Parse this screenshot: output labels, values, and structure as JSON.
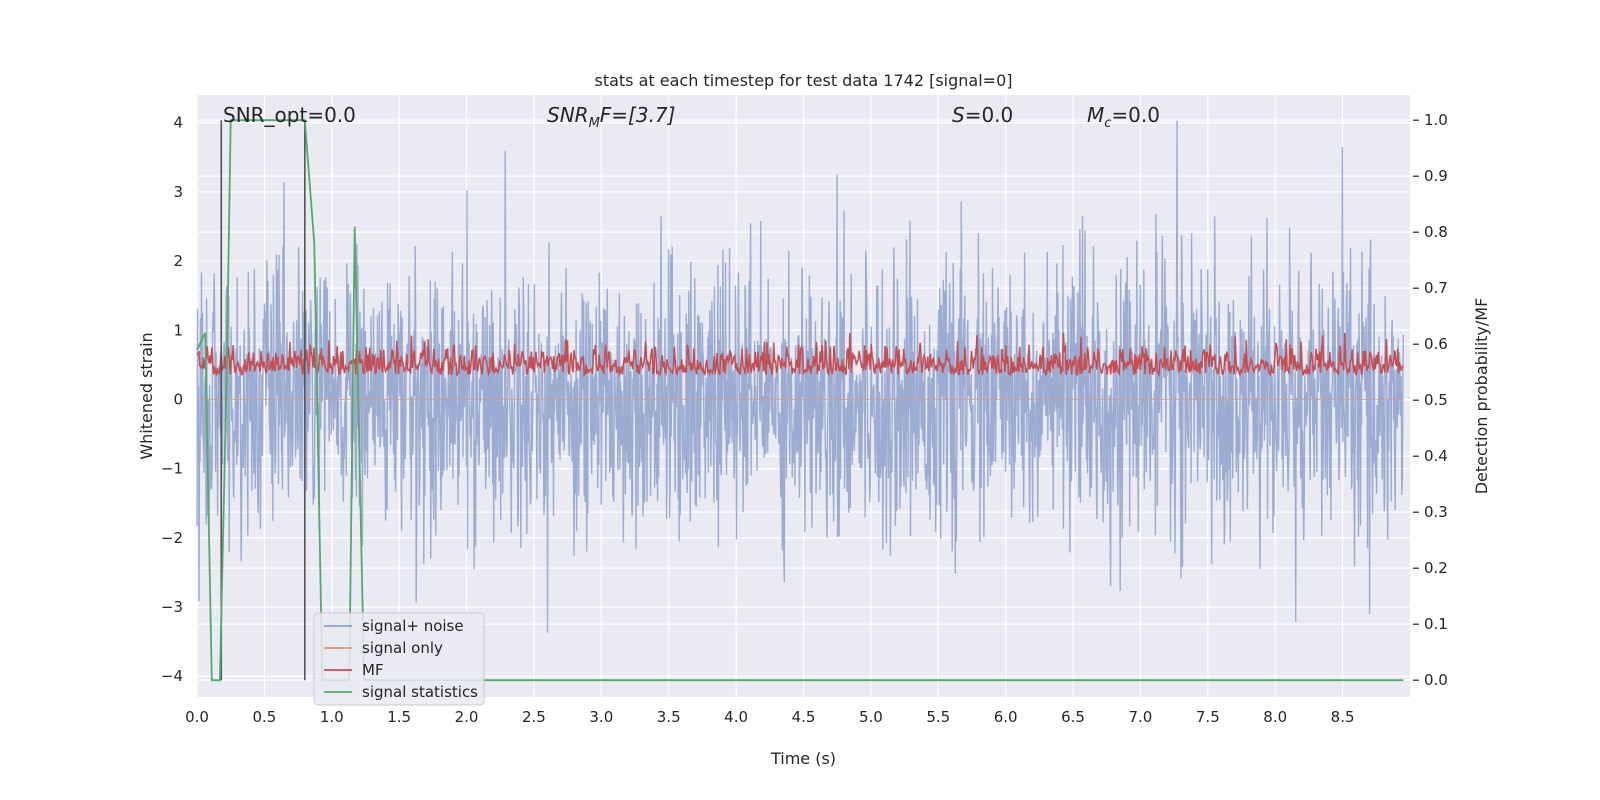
{
  "chart_data": {
    "type": "line",
    "title": "stats at each timestep for test data 1742 [signal=0]",
    "xlabel": "Time (s)",
    "ylabel_left": "Whitened strain",
    "ylabel_right": "Detection probability/MF",
    "xlim": [
      0.0,
      9.0
    ],
    "ylim_left": [
      -4.3,
      4.4
    ],
    "ylim_right": [
      -0.03,
      1.045
    ],
    "x_ticks": [
      0.0,
      0.5,
      1.0,
      1.5,
      2.0,
      2.5,
      3.0,
      3.5,
      4.0,
      4.5,
      5.0,
      5.5,
      6.0,
      6.5,
      7.0,
      7.5,
      8.0,
      8.5
    ],
    "x_tick_labels": [
      "0.0",
      "0.5",
      "1.0",
      "1.5",
      "2.0",
      "2.5",
      "3.0",
      "3.5",
      "4.0",
      "4.5",
      "5.0",
      "5.5",
      "6.0",
      "6.5",
      "7.0",
      "7.5",
      "8.0",
      "8.5"
    ],
    "y_left_ticks": [
      -4,
      -3,
      -2,
      -1,
      0,
      1,
      2,
      3,
      4
    ],
    "y_left_tick_labels": [
      "−4",
      "−3",
      "−2",
      "−1",
      "0",
      "1",
      "2",
      "3",
      "4"
    ],
    "y_right_ticks": [
      0.0,
      0.1,
      0.2,
      0.3,
      0.4,
      0.5,
      0.6,
      0.7,
      0.8,
      0.9,
      1.0
    ],
    "y_right_tick_labels": [
      "0.0",
      "0.1",
      "0.2",
      "0.3",
      "0.4",
      "0.5",
      "0.6",
      "0.7",
      "0.8",
      "0.9",
      "1.0"
    ],
    "grid": true,
    "legend_position": "lower-left",
    "annotations": {
      "snr_opt": "SNR_opt=0.0",
      "snr_mf_main": "SNR",
      "snr_mf_sub": "M",
      "snr_mf_rest": "F=[3.7]",
      "s_label": "S",
      "s_value": "=0.0",
      "mc_label": "M",
      "mc_sub": "c",
      "mc_value": "=0.0"
    },
    "vertical_lines_x": [
      0.18,
      0.8
    ],
    "series": [
      {
        "name": "signal+ noise",
        "axis": "left",
        "color": "#8da0cb",
        "description_type": "noise",
        "std": 0.95,
        "amplitude_range": [
          -3.37,
          4.03
        ],
        "peaks": [
          [
            7.27,
            4.03
          ],
          [
            8.5,
            3.65
          ],
          [
            4.75,
            3.25
          ],
          [
            2.6,
            -3.37
          ],
          [
            8.15,
            -3.22
          ],
          [
            8.7,
            -3.1
          ]
        ]
      },
      {
        "name": "signal only",
        "axis": "left",
        "color": "#e7956c",
        "values_constant": 0.0
      },
      {
        "name": "MF",
        "axis": "right",
        "color": "#c44e52",
        "range": [
          0.5,
          0.62
        ]
      },
      {
        "name": "signal statistics",
        "axis": "right",
        "color": "#55a868",
        "x": [
          0.0,
          0.06,
          0.11,
          0.17,
          0.22,
          0.25,
          0.4,
          0.55,
          0.7,
          0.8,
          0.87,
          0.93,
          1.06,
          1.13,
          1.17,
          1.24,
          1.35,
          2.0,
          4.0,
          6.0,
          8.0,
          8.95
        ],
        "y": [
          0.59,
          0.62,
          0.0,
          0.0,
          0.55,
          1.0,
          1.0,
          1.0,
          1.0,
          1.0,
          0.78,
          0.0,
          0.0,
          0.0,
          0.81,
          0.0,
          0.0,
          0.0,
          0.0,
          0.0,
          0.0,
          0.0
        ]
      }
    ]
  }
}
